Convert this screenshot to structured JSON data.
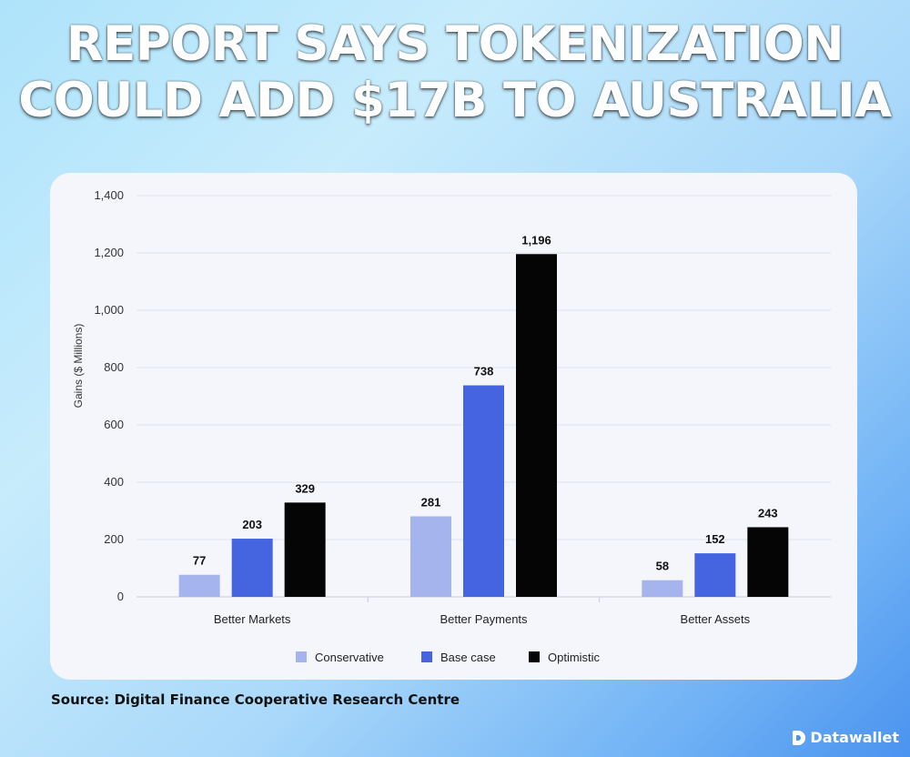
{
  "headline": {
    "line1": "REPORT SAYS TOKENIZATION",
    "line2": "COULD ADD $17B TO AUSTRALIA"
  },
  "source": "Source: Digital Finance Cooperative Research Centre",
  "brand": {
    "name": "Datawallet",
    "icon": "datawallet-logo-icon"
  },
  "chart_data": {
    "type": "bar",
    "title": "",
    "xlabel": "",
    "ylabel": "Gains ($ Millions)",
    "ylim": [
      0,
      1400
    ],
    "yticks": [
      0,
      200,
      400,
      600,
      800,
      1000,
      1200,
      1400
    ],
    "ytick_labels": [
      "0",
      "200",
      "400",
      "600",
      "800",
      "1,000",
      "1,200",
      "1,400"
    ],
    "categories": [
      "Better Markets",
      "Better Payments",
      "Better Assets"
    ],
    "series": [
      {
        "name": "Conservative",
        "values": [
          77,
          281,
          58
        ],
        "labels": [
          "77",
          "281",
          "58"
        ],
        "color": "#a6b4ee"
      },
      {
        "name": "Base case",
        "values": [
          203,
          738,
          152
        ],
        "labels": [
          "203",
          "738",
          "152"
        ],
        "color": "#4565e0"
      },
      {
        "name": "Optimistic",
        "values": [
          329,
          1196,
          243
        ],
        "labels": [
          "329",
          "1,196",
          "243"
        ],
        "color": "#050505"
      }
    ],
    "grid": true,
    "legend": "bottom"
  }
}
